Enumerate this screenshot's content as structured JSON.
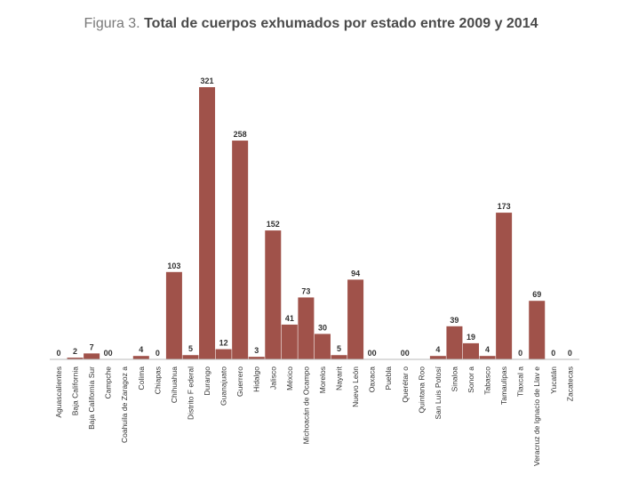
{
  "title_prefix": "Figura 3.",
  "title_main": "Total de cuerpos exhumados por estado entre 2009 y 2014",
  "chart_data": {
    "type": "bar",
    "title": "Figura 3. Total de cuerpos exhumados por estado entre 2009 y 2014",
    "xlabel": "",
    "ylabel": "",
    "ylim": [
      0,
      321
    ],
    "grid": false,
    "bar_color": "#a0524a",
    "categories": [
      "Aguascalientes",
      "Baja California",
      "Baja California Sur",
      "Campche",
      "Coahuila de Zaragoz a",
      "Colima",
      "Chiapas",
      "Chihuahua",
      "Distrito F ederal",
      "Durango",
      "Guanajuato",
      "Guerrero",
      "Hidalgo",
      "Jalisco",
      "México",
      "Michoacán de Ocampo",
      "Morelos",
      "Nayarit",
      "Nuevo León",
      "Oaxaca",
      "Puebla",
      "Querétar o",
      "Quintana Roo",
      "San Luis Potosí",
      "Sinaloa",
      "Sonor a",
      "Tabasco",
      "Tamaulipas",
      "Tlaxcal a",
      "Veracruz de Ignacio de Llav e",
      "Yucatán",
      "Zacatecas"
    ],
    "values": [
      0,
      2,
      7,
      0,
      0,
      4,
      0,
      103,
      5,
      321,
      12,
      258,
      3,
      152,
      41,
      73,
      30,
      5,
      94,
      0,
      0,
      0,
      0,
      4,
      39,
      19,
      4,
      173,
      0,
      69,
      0,
      0
    ],
    "value_labels": [
      "0",
      "2",
      "7",
      "00",
      "",
      "4",
      "0",
      "103",
      "5",
      "321",
      "12",
      "258",
      "3",
      "152",
      "41",
      "73",
      "30",
      "5",
      "94",
      "00",
      "",
      "00",
      "",
      "4",
      "39",
      "19",
      "4",
      "173",
      "0",
      "69",
      "0",
      "0"
    ]
  }
}
